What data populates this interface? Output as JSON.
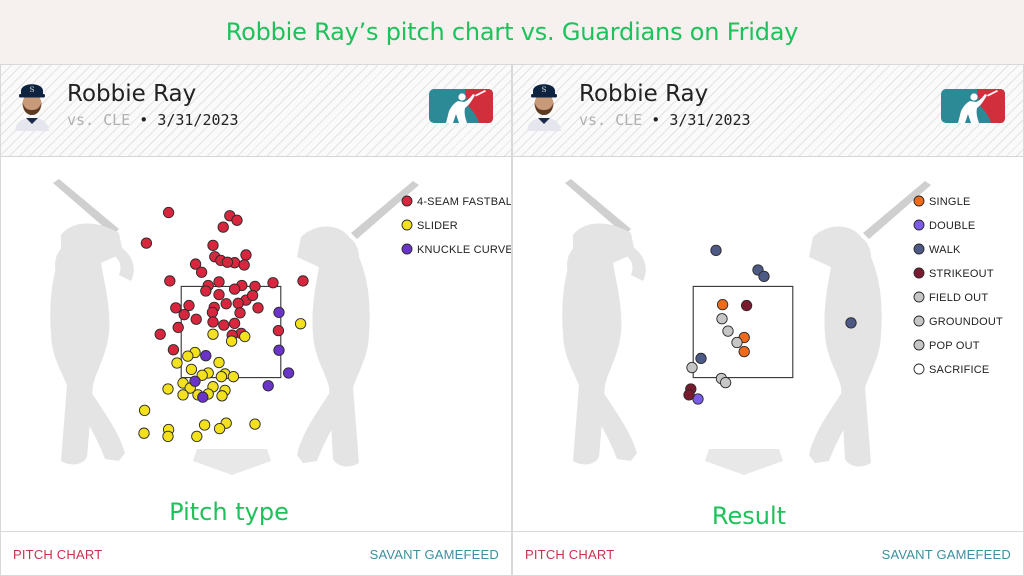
{
  "banner": {
    "title": "Robbie Ray’s pitch chart vs. Guardians on Friday"
  },
  "colors": {
    "banner_title": "#1ec25a",
    "footer_left": "#c8334d",
    "footer_right": "#3c8f9c",
    "mlb_logo_blue": "#2b8a96",
    "mlb_logo_red": "#d12f3c"
  },
  "icons": {
    "avatar": "player-headshot-icon",
    "logo": "mlb-logo-icon"
  },
  "panels": [
    {
      "player_name": "Robbie Ray",
      "opponent": "vs. CLE",
      "separator": "•",
      "date": "3/31/2023",
      "caption": "Pitch type",
      "footer_left": "PITCH CHART",
      "footer_right": "SAVANT GAMEFEED"
    },
    {
      "player_name": "Robbie Ray",
      "opponent": "vs. CLE",
      "separator": "•",
      "date": "3/31/2023",
      "caption": "Result",
      "footer_left": "PITCH CHART",
      "footer_right": "SAVANT GAMEFEED"
    }
  ],
  "chart_data": [
    {
      "type": "scatter",
      "title": "Pitch type",
      "legend_position": "top-right",
      "strike_zone": {
        "x": [
          -0.83,
          0.83
        ],
        "y": [
          1.5,
          3.5
        ]
      },
      "xlim": [
        -2.5,
        2.5
      ],
      "ylim": [
        -0.9,
        5.9
      ],
      "series": [
        {
          "name": "4-SEAM FASTBALL",
          "color": "#d7263d",
          "points": [
            [
              -1.04,
              5.12
            ],
            [
              -0.02,
              5.05
            ],
            [
              0.1,
              4.95
            ],
            [
              -0.13,
              4.8
            ],
            [
              -0.3,
              4.4
            ],
            [
              -1.41,
              4.45
            ],
            [
              -0.27,
              4.15
            ],
            [
              -0.17,
              4.07
            ],
            [
              0.06,
              4.02
            ],
            [
              0.25,
              4.19
            ],
            [
              -0.06,
              4.03
            ],
            [
              0.22,
              3.97
            ],
            [
              -0.59,
              3.99
            ],
            [
              -0.49,
              3.81
            ],
            [
              -1.02,
              3.62
            ],
            [
              -0.2,
              3.6
            ],
            [
              0.18,
              3.52
            ],
            [
              -0.38,
              3.52
            ],
            [
              0.4,
              3.5
            ],
            [
              0.7,
              3.58
            ],
            [
              1.2,
              3.62
            ],
            [
              0.06,
              3.44
            ],
            [
              0.25,
              3.2
            ],
            [
              0.12,
              3.13
            ],
            [
              -0.28,
              3.04
            ],
            [
              -0.08,
              3.12
            ],
            [
              -0.2,
              3.32
            ],
            [
              0.36,
              3.3
            ],
            [
              -0.42,
              3.4
            ],
            [
              0.15,
              2.92
            ],
            [
              -0.7,
              3.08
            ],
            [
              0.45,
              3.03
            ],
            [
              -0.92,
              3.03
            ],
            [
              -0.31,
              2.93
            ],
            [
              -0.58,
              2.78
            ],
            [
              -0.78,
              2.88
            ],
            [
              -0.3,
              2.72
            ],
            [
              0.06,
              2.69
            ],
            [
              -0.12,
              2.65
            ],
            [
              0.17,
              2.47
            ],
            [
              0.02,
              2.43
            ],
            [
              -1.18,
              2.45
            ],
            [
              -0.96,
              2.11
            ],
            [
              -0.88,
              2.6
            ],
            [
              0.79,
              2.53
            ]
          ]
        },
        {
          "name": "SLIDER",
          "color": "#f4e11e",
          "points": [
            [
              1.16,
              2.68
            ],
            [
              0.23,
              2.4
            ],
            [
              0.01,
              2.3
            ],
            [
              -0.3,
              2.45
            ],
            [
              -0.6,
              2.05
            ],
            [
              -0.72,
              1.97
            ],
            [
              -0.2,
              1.83
            ],
            [
              -0.9,
              1.82
            ],
            [
              -0.66,
              1.68
            ],
            [
              -0.1,
              1.58
            ],
            [
              -0.38,
              1.6
            ],
            [
              -0.16,
              1.52
            ],
            [
              0.04,
              1.52
            ],
            [
              -0.48,
              1.55
            ],
            [
              -0.8,
              1.38
            ],
            [
              -1.05,
              1.25
            ],
            [
              -0.3,
              1.3
            ],
            [
              -0.1,
              1.22
            ],
            [
              -0.68,
              1.27
            ],
            [
              -0.8,
              1.12
            ],
            [
              -0.38,
              1.14
            ],
            [
              -0.55,
              1.12
            ],
            [
              -0.15,
              1.1
            ],
            [
              -1.44,
              0.78
            ],
            [
              -1.45,
              0.28
            ],
            [
              -0.44,
              0.46
            ],
            [
              -0.08,
              0.5
            ],
            [
              -0.19,
              0.38
            ],
            [
              0.4,
              0.48
            ],
            [
              -1.04,
              0.36
            ],
            [
              -1.05,
              0.21
            ],
            [
              -0.57,
              0.21
            ]
          ]
        },
        {
          "name": "KNUCKLE CURVE",
          "color": "#6a34c8",
          "points": [
            [
              0.8,
              2.93
            ],
            [
              0.8,
              2.1
            ],
            [
              0.96,
              1.6
            ],
            [
              0.62,
              1.32
            ],
            [
              -0.42,
              1.98
            ],
            [
              -0.6,
              1.42
            ],
            [
              -0.47,
              1.07
            ]
          ]
        }
      ]
    },
    {
      "type": "scatter",
      "title": "Result",
      "legend_position": "top-right",
      "strike_zone": {
        "x": [
          -0.83,
          0.83
        ],
        "y": [
          1.5,
          3.5
        ]
      },
      "xlim": [
        -2.5,
        2.5
      ],
      "ylim": [
        -0.9,
        5.9
      ],
      "series": [
        {
          "name": "SINGLE",
          "color": "#f06a1c",
          "points": [
            [
              -0.34,
              3.1
            ],
            [
              0.02,
              2.38
            ],
            [
              0.02,
              2.07
            ]
          ]
        },
        {
          "name": "DOUBLE",
          "color": "#7b5ce6",
          "points": [
            [
              -0.75,
              1.03
            ]
          ]
        },
        {
          "name": "WALK",
          "color": "#4e5a86",
          "points": [
            [
              -0.45,
              4.29
            ],
            [
              0.25,
              3.86
            ],
            [
              0.35,
              3.72
            ],
            [
              1.8,
              2.7
            ],
            [
              -0.7,
              1.92
            ]
          ]
        },
        {
          "name": "STRIKEOUT",
          "color": "#7a1a2e",
          "points": [
            [
              0.06,
              3.08
            ],
            [
              -0.87,
              1.25
            ],
            [
              -0.9,
              1.12
            ]
          ]
        },
        {
          "name": "FIELD OUT",
          "color": "#c6c6c6",
          "points": [
            [
              -0.35,
              2.79
            ],
            [
              -0.1,
              2.27
            ],
            [
              -0.85,
              1.72
            ]
          ]
        },
        {
          "name": "GROUNDOUT",
          "color": "#c6c6c6",
          "points": [
            [
              -0.25,
              2.52
            ],
            [
              -0.36,
              1.48
            ],
            [
              -0.29,
              1.39
            ]
          ]
        },
        {
          "name": "POP OUT",
          "color": "#c6c6c6",
          "points": []
        },
        {
          "name": "SACRIFICE",
          "color": "#ffffff",
          "points": []
        }
      ]
    }
  ]
}
